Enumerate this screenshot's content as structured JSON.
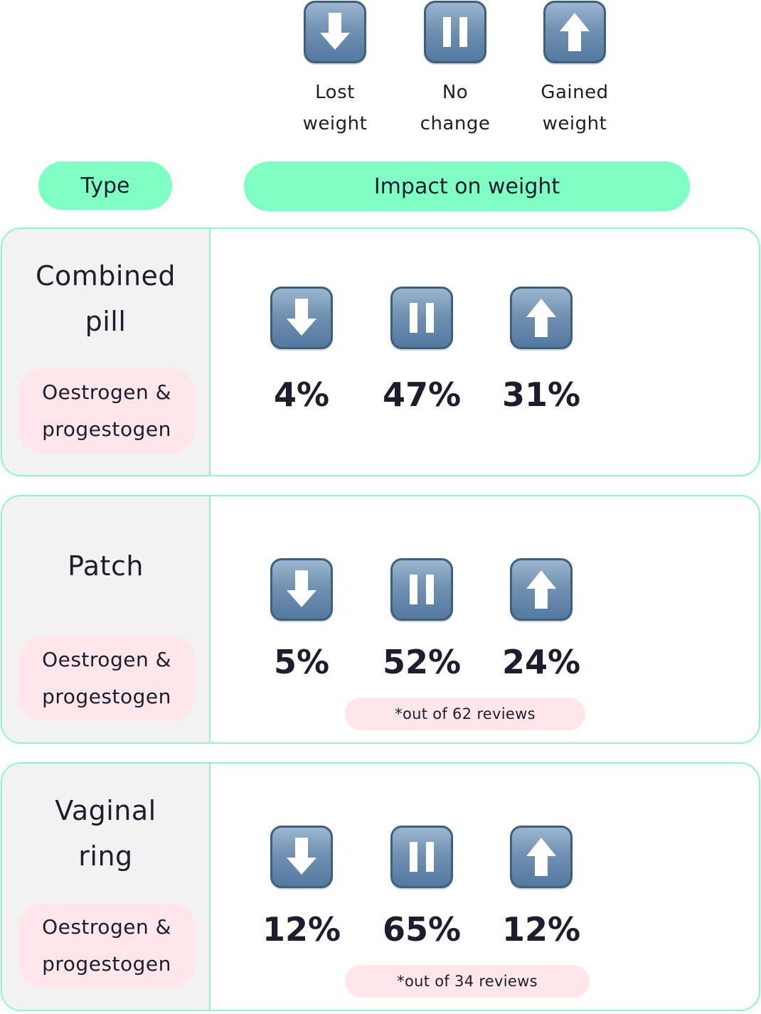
{
  "legend": [
    {
      "icon": "down-arrow-icon",
      "line1": "Lost",
      "line2": "weight"
    },
    {
      "icon": "pause-icon",
      "line1": "No",
      "line2": "change"
    },
    {
      "icon": "up-arrow-icon",
      "line1": "Gained",
      "line2": "weight"
    }
  ],
  "header": {
    "type_label": "Type",
    "impact_label": "Impact on weight"
  },
  "rows": [
    {
      "title_line1": "Combined",
      "title_line2": "pill",
      "hormone_line1": "Oestrogen &",
      "hormone_line2": "progestogen",
      "lost": "4%",
      "no_change": "47%",
      "gained": "31%",
      "note": ""
    },
    {
      "title_line1": "Patch",
      "title_line2": "",
      "hormone_line1": "Oestrogen &",
      "hormone_line2": "progestogen",
      "lost": "5%",
      "no_change": "52%",
      "gained": "24%",
      "note": "*out of 62 reviews"
    },
    {
      "title_line1": "Vaginal",
      "title_line2": "ring",
      "hormone_line1": "Oestrogen &",
      "hormone_line2": "progestogen",
      "lost": "12%",
      "no_change": "65%",
      "gained": "12%",
      "note": "*out of 34 reviews"
    }
  ],
  "colors": {
    "header_pill": "#80ffc5",
    "card_border": "#8ff5c9",
    "type_panel": "#f2f2f2",
    "hormone_badge": "#ffe6ea",
    "icon_blue": "#6f90b1",
    "text": "#1d1d2d"
  }
}
